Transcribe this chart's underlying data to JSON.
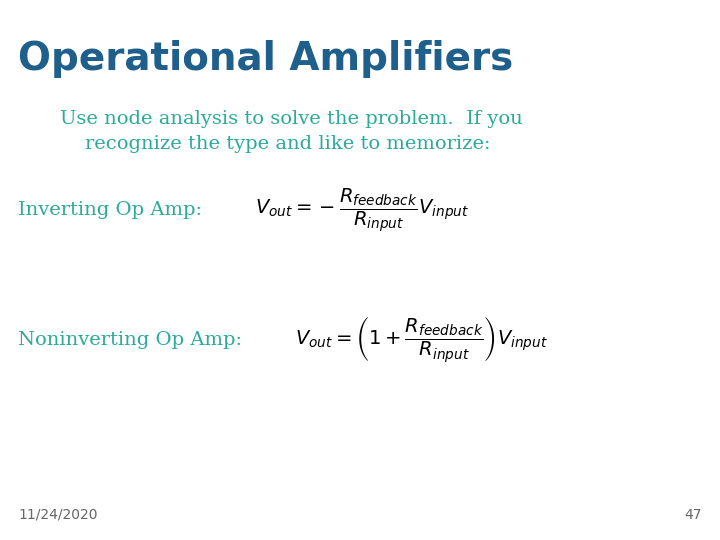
{
  "title": "Operational Amplifiers",
  "title_color": "#1f5f8b",
  "title_fontsize": 28,
  "title_bold": true,
  "body_color": "#2aab9a",
  "body_fontsize": 14,
  "paragraph_text": "Use node analysis to solve the problem.  If you\n    recognize the type and like to memorize:",
  "label_inverting": "Inverting Op Amp:",
  "label_noninverting": "Noninverting Op Amp:",
  "formula_inverting": "$V_{out} = -\\dfrac{R_{feedback}}{R_{input}}V_{input}$",
  "formula_noninverting": "$V_{out} = \\left(1 + \\dfrac{R_{feedback}}{R_{input}}\\right)V_{input}$",
  "footer_date": "11/24/2020",
  "footer_page": "47",
  "footer_fontsize": 10,
  "footer_color": "#666666",
  "background_color": "#ffffff",
  "label_fontsize": 14,
  "formula_fontsize": 14
}
